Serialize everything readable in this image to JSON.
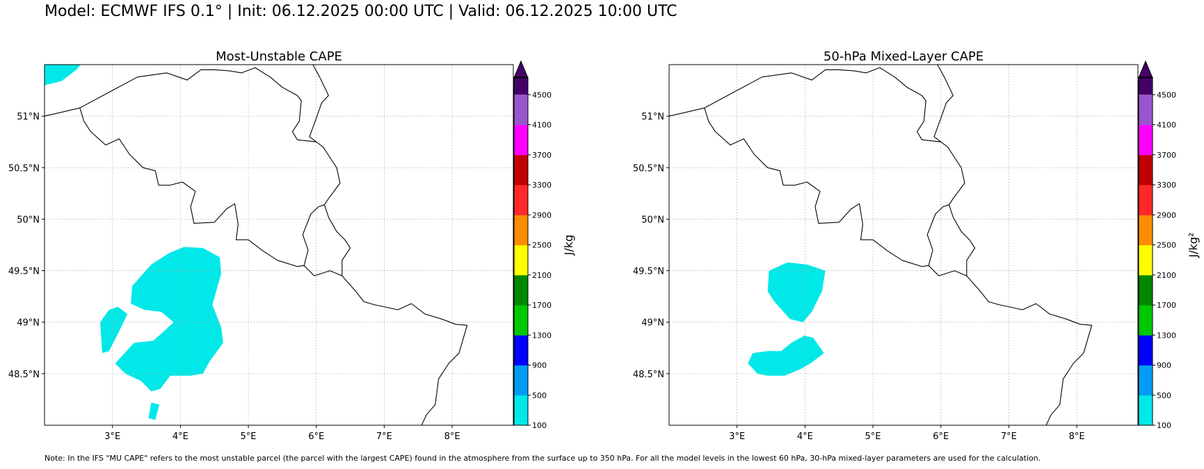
{
  "header": {
    "title": "Model: ECMWF IFS 0.1° | Init: 06.12.2025 00:00 UTC | Valid: 06.12.2025 10:00 UTC"
  },
  "footer": {
    "note": "Note: In the IFS \"MU CAPE\" refers to the most unstable parcel (the parcel with the largest CAPE) found in the atmosphere from the surface up to 350 hPa. For all the model levels in the lowest 60 hPa, 30-hPa mixed-layer parameters are used for the calculation."
  },
  "colors": {
    "coastline": "#000000",
    "gridline": "#b0b0b0",
    "extend_max": "#440068"
  },
  "chart_data": [
    {
      "type": "filled-contour-map",
      "id": "mu",
      "title": "Most-Unstable CAPE",
      "lon_range": [
        2.0,
        8.9
      ],
      "lat_range": [
        48.0,
        51.5
      ],
      "xticks": [
        "3°E",
        "4°E",
        "5°E",
        "6°E",
        "7°E",
        "8°E"
      ],
      "yticks": [
        "51°N",
        "50.5°N",
        "50°N",
        "49.5°N",
        "49°N",
        "48.5°N"
      ],
      "colorbar": {
        "label": "J/kg",
        "levels": [
          100,
          500,
          900,
          1300,
          1700,
          2100,
          2500,
          2900,
          3300,
          3700,
          4100,
          4500
        ],
        "colors": [
          "#00e8e8",
          "#009cf5",
          "#0000ff",
          "#00c800",
          "#008800",
          "#ffff00",
          "#ff8c00",
          "#ff2828",
          "#c00000",
          "#ff00ff",
          "#9955cc"
        ],
        "extend": "max"
      },
      "filled_regions": [
        {
          "level_band": "100-500",
          "lonlat": [
            [
              2.0,
              51.3
            ],
            [
              2.25,
              51.34
            ],
            [
              2.47,
              51.45
            ],
            [
              2.53,
              51.5
            ],
            [
              2.0,
              51.5
            ]
          ]
        },
        {
          "level_band": "100-500",
          "lonlat": [
            [
              3.57,
              49.56
            ],
            [
              3.83,
              49.67
            ],
            [
              4.05,
              49.73
            ],
            [
              4.33,
              49.72
            ],
            [
              4.58,
              49.63
            ],
            [
              4.6,
              49.47
            ],
            [
              4.47,
              49.17
            ],
            [
              4.6,
              48.95
            ],
            [
              4.63,
              48.8
            ],
            [
              4.43,
              48.62
            ],
            [
              4.33,
              48.5
            ],
            [
              4.14,
              48.48
            ],
            [
              3.85,
              48.48
            ],
            [
              3.7,
              48.35
            ],
            [
              3.57,
              48.33
            ],
            [
              3.42,
              48.43
            ],
            [
              3.19,
              48.5
            ],
            [
              3.04,
              48.6
            ],
            [
              3.22,
              48.73
            ],
            [
              3.32,
              48.8
            ],
            [
              3.6,
              48.82
            ],
            [
              3.77,
              48.92
            ],
            [
              3.9,
              49.0
            ],
            [
              3.72,
              49.1
            ],
            [
              3.47,
              49.12
            ],
            [
              3.27,
              49.18
            ],
            [
              3.29,
              49.35
            ]
          ]
        },
        {
          "level_band": "100-500",
          "lonlat": [
            [
              2.82,
              49.0
            ],
            [
              2.95,
              49.12
            ],
            [
              3.08,
              49.15
            ],
            [
              3.22,
              49.08
            ],
            [
              3.09,
              48.9
            ],
            [
              2.95,
              48.72
            ],
            [
              2.85,
              48.7
            ]
          ]
        },
        {
          "level_band": "100-500",
          "lonlat": [
            [
              3.57,
              48.22
            ],
            [
              3.69,
              48.2
            ],
            [
              3.63,
              48.05
            ],
            [
              3.53,
              48.07
            ]
          ]
        }
      ]
    },
    {
      "type": "filled-contour-map",
      "id": "ml",
      "title": "50-hPa Mixed-Layer CAPE",
      "lon_range": [
        2.0,
        8.9
      ],
      "lat_range": [
        48.0,
        51.5
      ],
      "xticks": [
        "3°E",
        "4°E",
        "5°E",
        "6°E",
        "7°E",
        "8°E"
      ],
      "yticks": [
        "51°N",
        "50.5°N",
        "50°N",
        "49.5°N",
        "49°N",
        "48.5°N"
      ],
      "colorbar": {
        "label": "J/kg²",
        "levels": [
          100,
          500,
          900,
          1300,
          1700,
          2100,
          2500,
          2900,
          3300,
          3700,
          4100,
          4500
        ],
        "colors": [
          "#00e8e8",
          "#009cf5",
          "#0000ff",
          "#00c800",
          "#008800",
          "#ffff00",
          "#ff8c00",
          "#ff2828",
          "#c00000",
          "#ff00ff",
          "#9955cc"
        ],
        "extend": "max"
      },
      "filled_regions": [
        {
          "level_band": "100-500",
          "lonlat": [
            [
              3.47,
              49.5
            ],
            [
              3.74,
              49.58
            ],
            [
              4.03,
              49.56
            ],
            [
              4.3,
              49.5
            ],
            [
              4.25,
              49.3
            ],
            [
              4.1,
              49.1
            ],
            [
              3.97,
              49.0
            ],
            [
              3.78,
              49.03
            ],
            [
              3.55,
              49.2
            ],
            [
              3.45,
              49.3
            ]
          ]
        },
        {
          "level_band": "100-500",
          "lonlat": [
            [
              3.16,
              48.6
            ],
            [
              3.3,
              48.5
            ],
            [
              3.45,
              48.48
            ],
            [
              3.7,
              48.48
            ],
            [
              3.95,
              48.55
            ],
            [
              4.08,
              48.6
            ],
            [
              4.28,
              48.7
            ],
            [
              4.12,
              48.85
            ],
            [
              3.99,
              48.87
            ],
            [
              3.8,
              48.8
            ],
            [
              3.65,
              48.72
            ],
            [
              3.45,
              48.72
            ],
            [
              3.23,
              48.7
            ]
          ]
        }
      ]
    }
  ],
  "borders": [
    {
      "name": "france-belgium-luxembourg-germany",
      "lonlat": [
        [
          2.0,
          51.0
        ],
        [
          2.2,
          51.03
        ],
        [
          2.52,
          51.08
        ],
        [
          2.58,
          50.95
        ],
        [
          2.68,
          50.85
        ],
        [
          2.9,
          50.72
        ],
        [
          3.1,
          50.78
        ],
        [
          3.25,
          50.63
        ],
        [
          3.45,
          50.5
        ],
        [
          3.63,
          50.47
        ],
        [
          3.68,
          50.33
        ],
        [
          3.85,
          50.33
        ],
        [
          4.03,
          50.36
        ],
        [
          4.22,
          50.27
        ],
        [
          4.15,
          50.12
        ],
        [
          4.2,
          49.96
        ],
        [
          4.5,
          49.97
        ],
        [
          4.68,
          50.1
        ],
        [
          4.8,
          50.15
        ],
        [
          4.85,
          49.95
        ],
        [
          4.82,
          49.8
        ],
        [
          5.0,
          49.8
        ],
        [
          5.22,
          49.69
        ],
        [
          5.43,
          49.6
        ],
        [
          5.72,
          49.54
        ],
        [
          5.82,
          49.55
        ],
        [
          5.97,
          49.45
        ],
        [
          6.2,
          49.5
        ],
        [
          6.38,
          49.45
        ],
        [
          6.58,
          49.3
        ],
        [
          6.7,
          49.2
        ],
        [
          6.85,
          49.17
        ],
        [
          7.0,
          49.15
        ],
        [
          7.2,
          49.12
        ],
        [
          7.4,
          49.18
        ],
        [
          7.6,
          49.08
        ],
        [
          7.85,
          49.03
        ],
        [
          8.05,
          48.98
        ],
        [
          8.22,
          48.97
        ],
        [
          8.1,
          48.7
        ],
        [
          7.95,
          48.6
        ],
        [
          7.8,
          48.45
        ],
        [
          7.75,
          48.2
        ],
        [
          7.62,
          48.1
        ],
        [
          7.55,
          48.0
        ]
      ]
    },
    {
      "name": "belgium-netherlands",
      "lonlat": [
        [
          2.52,
          51.08
        ],
        [
          3.0,
          51.25
        ],
        [
          3.37,
          51.38
        ],
        [
          3.8,
          51.42
        ],
        [
          4.1,
          51.35
        ],
        [
          4.3,
          51.45
        ],
        [
          4.5,
          51.45
        ],
        [
          4.72,
          51.44
        ],
        [
          4.9,
          51.42
        ],
        [
          5.1,
          51.47
        ],
        [
          5.32,
          51.38
        ],
        [
          5.5,
          51.28
        ],
        [
          5.72,
          51.2
        ],
        [
          5.78,
          51.15
        ],
        [
          5.75,
          50.95
        ],
        [
          5.65,
          50.85
        ],
        [
          5.72,
          50.77
        ]
      ]
    },
    {
      "name": "belgium-germany",
      "lonlat": [
        [
          5.72,
          50.77
        ],
        [
          6.0,
          50.75
        ],
        [
          6.1,
          50.7
        ],
        [
          6.2,
          50.6
        ],
        [
          6.3,
          50.5
        ],
        [
          6.35,
          50.35
        ],
        [
          6.18,
          50.2
        ],
        [
          6.12,
          50.14
        ]
      ]
    },
    {
      "name": "belgium-luxembourg",
      "lonlat": [
        [
          6.12,
          50.14
        ],
        [
          6.03,
          50.12
        ],
        [
          5.92,
          50.05
        ],
        [
          5.8,
          49.85
        ],
        [
          5.88,
          49.7
        ],
        [
          5.82,
          49.55
        ]
      ]
    },
    {
      "name": "luxembourg-germany",
      "lonlat": [
        [
          6.12,
          50.14
        ],
        [
          6.18,
          50.02
        ],
        [
          6.3,
          49.88
        ],
        [
          6.42,
          49.8
        ],
        [
          6.5,
          49.72
        ],
        [
          6.38,
          49.6
        ],
        [
          6.38,
          49.45
        ]
      ]
    },
    {
      "name": "netherlands-germany",
      "lonlat": [
        [
          5.95,
          51.5
        ],
        [
          6.05,
          51.38
        ],
        [
          6.18,
          51.2
        ],
        [
          6.08,
          51.13
        ],
        [
          6.0,
          50.98
        ],
        [
          5.9,
          50.8
        ],
        [
          6.0,
          50.75
        ]
      ]
    }
  ]
}
